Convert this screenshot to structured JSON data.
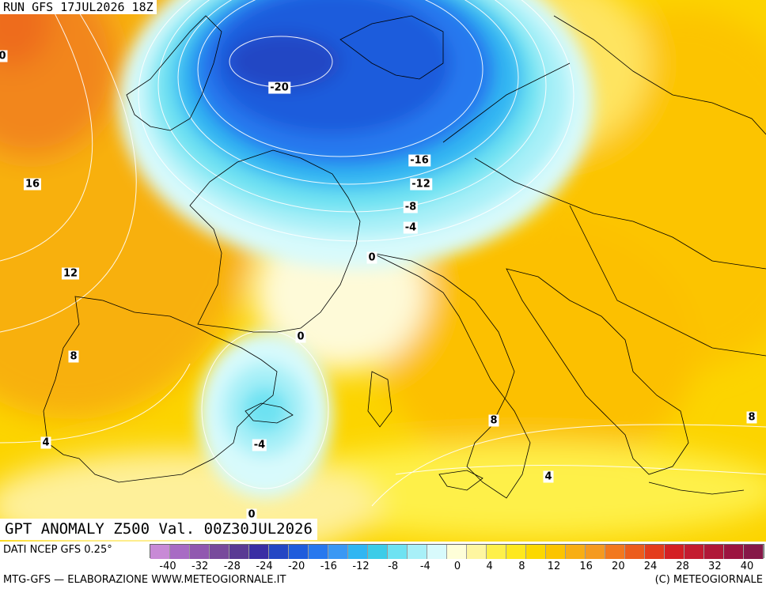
{
  "run": "RUN GFS 17JUL2026 18Z",
  "title": "GPT ANOMALY Z500 Val. 00Z30JUL2026",
  "source": "DATI NCEP GFS 0.25°",
  "footer_left": "MTG-GFS — ELABORAZIONE WWW.METEOGIORNALE.IT",
  "footer_right": "(C) METEOGIORNALE",
  "contour_labels": [
    "0",
    "16",
    "12",
    "8",
    "4",
    "-20",
    "-16",
    "-12",
    "-8",
    "-4",
    "0",
    "0",
    "-4",
    "0",
    "8",
    "4",
    "8"
  ],
  "scale": {
    "colors": [
      "#c88ad6",
      "#a86cc4",
      "#9158b0",
      "#784a9c",
      "#5a3a94",
      "#3a2ea4",
      "#2446c4",
      "#1f5cdc",
      "#2878ee",
      "#3a98f4",
      "#30b6f2",
      "#3ccce8",
      "#6ee2f2",
      "#a8f0f8",
      "#d8fafc",
      "#fefed8",
      "#fef6a0",
      "#fef04a",
      "#fee81e",
      "#fcd800",
      "#fcc400",
      "#f8ae14",
      "#f59a20",
      "#f2781e",
      "#ec5c1c",
      "#e43c1c",
      "#d42024",
      "#c41c30",
      "#b01838",
      "#9c1440",
      "#861848"
    ],
    "ticks": [
      "-40",
      "-32",
      "-28",
      "-24",
      "-20",
      "-16",
      "-12",
      "-8",
      "-4",
      "0",
      "4",
      "8",
      "12",
      "16",
      "20",
      "24",
      "28",
      "32",
      "40"
    ]
  }
}
